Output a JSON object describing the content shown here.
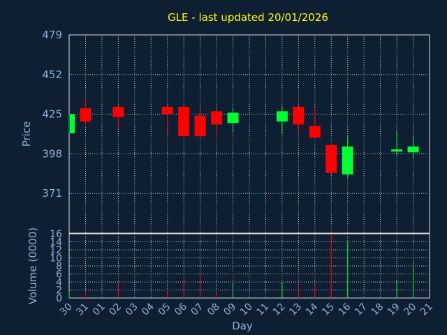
{
  "chart_data": {
    "type": "candlestick",
    "title": "GLE - last updated 20/01/2026",
    "xlabel": "Day",
    "colors": {
      "up": "#00ff33",
      "down": "#ff0000",
      "background": "#0f1f33",
      "title": "#ffff00",
      "axis_text": "#8fb0d2"
    },
    "price": {
      "ylabel": "Price",
      "ylim": [
        344,
        479
      ],
      "yticks": [
        "479",
        "452",
        "425",
        "398",
        "371"
      ],
      "grid": true
    },
    "volume": {
      "ylabel": "Volume (0000)",
      "ylim": [
        0,
        16
      ],
      "yticks": [
        "16",
        "14",
        "12",
        "10",
        "8",
        "6",
        "4",
        "2",
        "0"
      ],
      "grid": true
    },
    "x_ticks": [
      "30",
      "31",
      "01",
      "02",
      "03",
      "04",
      "05",
      "06",
      "07",
      "08",
      "09",
      "10",
      "11",
      "12",
      "13",
      "14",
      "15",
      "16",
      "17",
      "18",
      "19",
      "20",
      "21"
    ],
    "candles": [
      {
        "day": "30",
        "open": 412,
        "high": 425,
        "low": 412,
        "close": 425,
        "volume": 1.5
      },
      {
        "day": "31",
        "open": 429,
        "high": 435,
        "low": 417,
        "close": 420,
        "volume": 1.0
      },
      {
        "day": "02",
        "open": 430,
        "high": 430,
        "low": 415,
        "close": 423,
        "volume": 4.0
      },
      {
        "day": "05",
        "open": 430,
        "high": 430,
        "low": 412,
        "close": 425,
        "volume": 2.0
      },
      {
        "day": "06",
        "open": 430,
        "high": 430,
        "low": 410,
        "close": 410,
        "volume": 4.2
      },
      {
        "day": "07",
        "open": 424,
        "high": 428,
        "low": 409,
        "close": 410,
        "volume": 6.0
      },
      {
        "day": "08",
        "open": 427,
        "high": 427,
        "low": 410,
        "close": 418,
        "volume": 2.0
      },
      {
        "day": "09",
        "open": 419,
        "high": 429,
        "low": 413,
        "close": 426,
        "volume": 4.0
      },
      {
        "day": "12",
        "open": 420,
        "high": 430,
        "low": 412,
        "close": 427,
        "volume": 4.0
      },
      {
        "day": "13",
        "open": 430,
        "high": 430,
        "low": 413,
        "close": 418,
        "volume": 3.0
      },
      {
        "day": "14",
        "open": 417,
        "high": 430,
        "low": 409,
        "close": 409,
        "volume": 3.0
      },
      {
        "day": "15",
        "open": 404,
        "high": 404,
        "low": 385,
        "close": 385,
        "volume": 16.0
      },
      {
        "day": "16",
        "open": 384,
        "high": 410,
        "low": 382,
        "close": 403,
        "volume": 14.0
      },
      {
        "day": "19",
        "open": 400,
        "high": 413,
        "low": 397,
        "close": 401,
        "volume": 4.5
      },
      {
        "day": "20",
        "open": 399,
        "high": 410,
        "low": 395,
        "close": 403,
        "volume": 8.5
      }
    ]
  }
}
